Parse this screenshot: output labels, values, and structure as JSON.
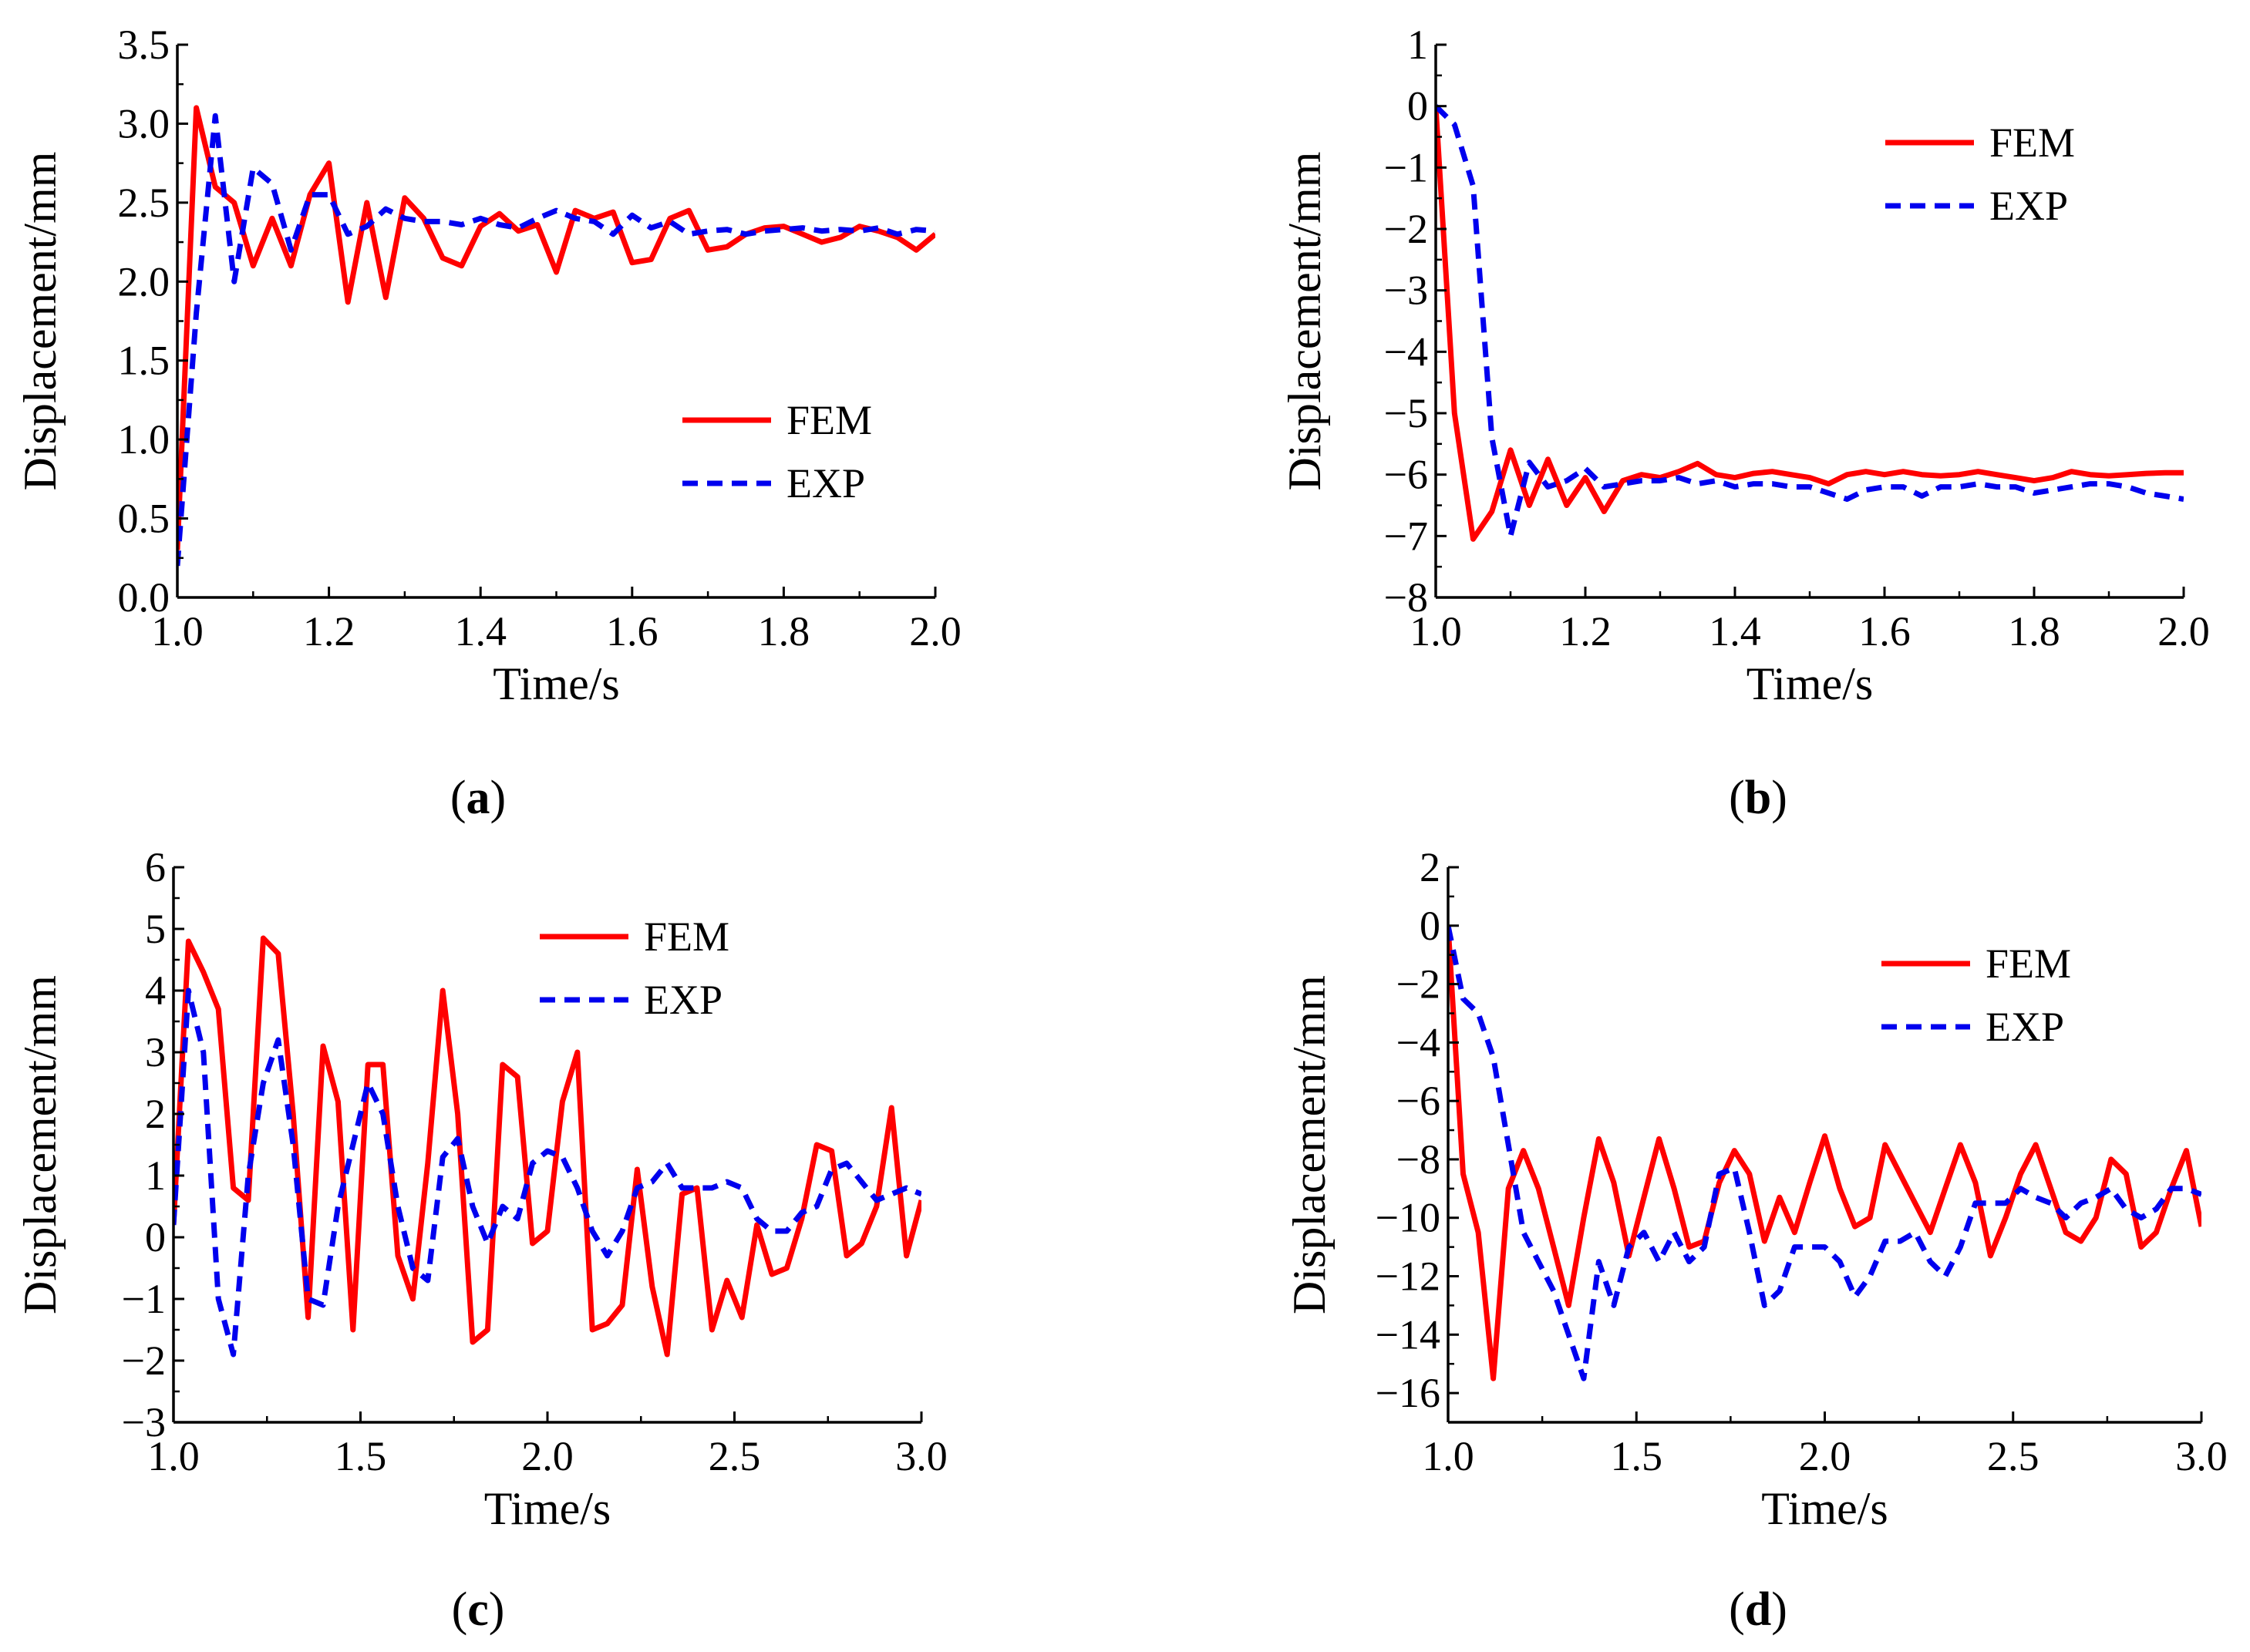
{
  "chart_data": [
    {
      "type": "line",
      "panel": "(a)",
      "panel_letter": "a",
      "xlabel": "Time/s",
      "ylabel": "Displacement/mm",
      "xlim": [
        1.0,
        2.0
      ],
      "ylim": [
        0.0,
        3.5
      ],
      "xticks": [
        "1.0",
        "1.2",
        "1.4",
        "1.6",
        "1.8",
        "2.0"
      ],
      "yticks": [
        "0.0",
        "0.5",
        "1.0",
        "1.5",
        "2.0",
        "2.5",
        "3.0",
        "3.5"
      ],
      "legend_position": "right-middle",
      "series": [
        {
          "name": "FEM",
          "color": "#ff0000",
          "style": "solid",
          "x": [
            1.0,
            1.025,
            1.05,
            1.075,
            1.1,
            1.125,
            1.15,
            1.175,
            1.2,
            1.225,
            1.25,
            1.275,
            1.3,
            1.325,
            1.35,
            1.375,
            1.4,
            1.425,
            1.45,
            1.475,
            1.5,
            1.525,
            1.55,
            1.575,
            1.6,
            1.625,
            1.65,
            1.675,
            1.7,
            1.725,
            1.75,
            1.775,
            1.8,
            1.825,
            1.85,
            1.875,
            1.9,
            1.925,
            1.95,
            1.975,
            2.0
          ],
          "y": [
            0.3,
            3.1,
            2.6,
            2.5,
            2.1,
            2.4,
            2.1,
            2.55,
            2.75,
            1.87,
            2.5,
            1.9,
            2.53,
            2.4,
            2.15,
            2.1,
            2.35,
            2.43,
            2.32,
            2.36,
            2.06,
            2.45,
            2.4,
            2.44,
            2.12,
            2.14,
            2.4,
            2.45,
            2.2,
            2.22,
            2.3,
            2.34,
            2.35,
            2.3,
            2.25,
            2.28,
            2.35,
            2.32,
            2.28,
            2.2,
            2.3
          ]
        },
        {
          "name": "EXP",
          "color": "#0000ee",
          "style": "dashed",
          "x": [
            1.0,
            1.025,
            1.05,
            1.075,
            1.1,
            1.125,
            1.15,
            1.175,
            1.2,
            1.225,
            1.25,
            1.275,
            1.3,
            1.325,
            1.35,
            1.375,
            1.4,
            1.425,
            1.45,
            1.475,
            1.5,
            1.525,
            1.55,
            1.575,
            1.6,
            1.625,
            1.65,
            1.675,
            1.7,
            1.725,
            1.75,
            1.775,
            1.8,
            1.825,
            1.85,
            1.875,
            1.9,
            1.925,
            1.95,
            1.975,
            2.0
          ],
          "y": [
            0.2,
            1.8,
            3.05,
            2.0,
            2.72,
            2.62,
            2.2,
            2.55,
            2.55,
            2.3,
            2.35,
            2.46,
            2.4,
            2.38,
            2.38,
            2.36,
            2.4,
            2.36,
            2.34,
            2.4,
            2.45,
            2.4,
            2.38,
            2.3,
            2.42,
            2.34,
            2.38,
            2.3,
            2.32,
            2.33,
            2.3,
            2.32,
            2.33,
            2.34,
            2.32,
            2.33,
            2.32,
            2.34,
            2.3,
            2.33,
            2.32
          ]
        }
      ]
    },
    {
      "type": "line",
      "panel": "(b)",
      "panel_letter": "b",
      "xlabel": "Time/s",
      "ylabel": "Displacement/mm",
      "xlim": [
        1.0,
        2.0
      ],
      "ylim": [
        -8,
        1
      ],
      "xticks": [
        "1.0",
        "1.2",
        "1.4",
        "1.6",
        "1.8",
        "2.0"
      ],
      "yticks": [
        "−8",
        "−7",
        "−6",
        "−5",
        "−4",
        "−3",
        "−2",
        "−1",
        "0",
        "1"
      ],
      "legend_position": "top-right",
      "series": [
        {
          "name": "FEM",
          "color": "#ff0000",
          "style": "solid",
          "x": [
            1.0,
            1.025,
            1.05,
            1.075,
            1.1,
            1.125,
            1.15,
            1.175,
            1.2,
            1.225,
            1.25,
            1.275,
            1.3,
            1.325,
            1.35,
            1.375,
            1.4,
            1.425,
            1.45,
            1.475,
            1.5,
            1.525,
            1.55,
            1.575,
            1.6,
            1.625,
            1.65,
            1.675,
            1.7,
            1.725,
            1.75,
            1.775,
            1.8,
            1.825,
            1.85,
            1.875,
            1.9,
            1.925,
            1.95,
            1.975,
            2.0
          ],
          "y": [
            0.0,
            -5.0,
            -7.05,
            -6.6,
            -5.6,
            -6.5,
            -5.75,
            -6.5,
            -6.05,
            -6.6,
            -6.1,
            -6.0,
            -6.05,
            -5.95,
            -5.82,
            -6.0,
            -6.05,
            -5.98,
            -5.95,
            -6.0,
            -6.05,
            -6.15,
            -6.0,
            -5.95,
            -6.0,
            -5.95,
            -6.0,
            -6.02,
            -6.0,
            -5.95,
            -6.0,
            -6.05,
            -6.1,
            -6.05,
            -5.95,
            -6.0,
            -6.02,
            -6.0,
            -5.98,
            -5.97,
            -5.97
          ]
        },
        {
          "name": "EXP",
          "color": "#0000ee",
          "style": "dashed",
          "x": [
            1.0,
            1.025,
            1.05,
            1.075,
            1.1,
            1.125,
            1.15,
            1.175,
            1.2,
            1.225,
            1.25,
            1.275,
            1.3,
            1.325,
            1.35,
            1.375,
            1.4,
            1.425,
            1.45,
            1.475,
            1.5,
            1.525,
            1.55,
            1.575,
            1.6,
            1.625,
            1.65,
            1.675,
            1.7,
            1.725,
            1.75,
            1.775,
            1.8,
            1.825,
            1.85,
            1.875,
            1.9,
            1.925,
            1.95,
            1.975,
            2.0
          ],
          "y": [
            0.0,
            -0.3,
            -1.3,
            -5.4,
            -7.0,
            -5.8,
            -6.2,
            -6.1,
            -5.9,
            -6.2,
            -6.15,
            -6.1,
            -6.1,
            -6.05,
            -6.15,
            -6.1,
            -6.2,
            -6.15,
            -6.15,
            -6.2,
            -6.2,
            -6.3,
            -6.4,
            -6.25,
            -6.2,
            -6.2,
            -6.35,
            -6.2,
            -6.2,
            -6.15,
            -6.2,
            -6.2,
            -6.3,
            -6.25,
            -6.2,
            -6.15,
            -6.15,
            -6.2,
            -6.3,
            -6.35,
            -6.4
          ]
        }
      ]
    },
    {
      "type": "line",
      "panel": "(c)",
      "panel_letter": "c",
      "xlabel": "Time/s",
      "ylabel": "Displacement/mm",
      "xlim": [
        1.0,
        3.0
      ],
      "ylim": [
        -3,
        6
      ],
      "xticks": [
        "1.0",
        "1.5",
        "2.0",
        "2.5",
        "3.0"
      ],
      "yticks": [
        "−3",
        "−2",
        "−1",
        "0",
        "1",
        "2",
        "3",
        "4",
        "5",
        "6"
      ],
      "legend_position": "top-middle",
      "series": [
        {
          "name": "FEM",
          "color": "#ff0000",
          "style": "solid",
          "x": [
            1.0,
            1.04,
            1.08,
            1.12,
            1.16,
            1.2,
            1.24,
            1.28,
            1.32,
            1.36,
            1.4,
            1.44,
            1.48,
            1.52,
            1.56,
            1.6,
            1.64,
            1.68,
            1.72,
            1.76,
            1.8,
            1.84,
            1.88,
            1.92,
            1.96,
            2.0,
            2.04,
            2.08,
            2.12,
            2.16,
            2.2,
            2.24,
            2.28,
            2.32,
            2.36,
            2.4,
            2.44,
            2.48,
            2.52,
            2.56,
            2.6,
            2.64,
            2.68,
            2.72,
            2.76,
            2.8,
            2.84,
            2.88,
            2.92,
            2.96,
            3.0
          ],
          "y": [
            0.2,
            4.8,
            4.3,
            3.7,
            0.8,
            0.6,
            4.85,
            4.6,
            2.0,
            -1.3,
            3.1,
            2.2,
            -1.5,
            2.8,
            2.8,
            -0.3,
            -1.0,
            1.2,
            4.0,
            2.0,
            -1.7,
            -1.5,
            2.8,
            2.6,
            -0.1,
            0.1,
            2.2,
            3.0,
            -1.5,
            -1.4,
            -1.1,
            1.1,
            -0.8,
            -1.9,
            0.7,
            0.8,
            -1.5,
            -0.7,
            -1.3,
            0.2,
            -0.6,
            -0.5,
            0.3,
            1.5,
            1.4,
            -0.3,
            -0.1,
            0.5,
            2.1,
            -0.3,
            0.6
          ]
        },
        {
          "name": "EXP",
          "color": "#0000ee",
          "style": "dashed",
          "x": [
            1.0,
            1.04,
            1.08,
            1.12,
            1.16,
            1.2,
            1.24,
            1.28,
            1.32,
            1.36,
            1.4,
            1.44,
            1.48,
            1.52,
            1.56,
            1.6,
            1.64,
            1.68,
            1.72,
            1.76,
            1.8,
            1.84,
            1.88,
            1.92,
            1.96,
            2.0,
            2.04,
            2.08,
            2.12,
            2.16,
            2.2,
            2.24,
            2.28,
            2.32,
            2.36,
            2.4,
            2.44,
            2.48,
            2.52,
            2.56,
            2.6,
            2.64,
            2.68,
            2.72,
            2.76,
            2.8,
            2.84,
            2.88,
            2.92,
            2.96,
            3.0
          ],
          "y": [
            0.2,
            4.0,
            3.0,
            -1.0,
            -1.9,
            1.0,
            2.5,
            3.2,
            1.5,
            -1.0,
            -1.1,
            0.5,
            1.5,
            2.5,
            2.0,
            0.5,
            -0.5,
            -0.7,
            1.3,
            1.6,
            0.5,
            -0.1,
            0.5,
            0.3,
            1.2,
            1.4,
            1.3,
            0.8,
            0.1,
            -0.3,
            0.1,
            0.8,
            0.9,
            1.2,
            0.8,
            0.8,
            0.8,
            0.9,
            0.8,
            0.3,
            0.1,
            0.1,
            0.4,
            0.5,
            1.1,
            1.2,
            0.9,
            0.6,
            0.7,
            0.8,
            0.7
          ]
        }
      ]
    },
    {
      "type": "line",
      "panel": "(d)",
      "panel_letter": "d",
      "xlabel": "Time/s",
      "ylabel": "Displacement/mm",
      "xlim": [
        1.0,
        3.0
      ],
      "ylim": [
        -17,
        2
      ],
      "xticks": [
        "1.0",
        "1.5",
        "2.0",
        "2.5",
        "3.0"
      ],
      "yticks": [
        "−16",
        "−14",
        "−12",
        "−10",
        "−8",
        "−6",
        "−4",
        "−2",
        "0",
        "2"
      ],
      "legend_position": "top-right",
      "series": [
        {
          "name": "FEM",
          "color": "#ff0000",
          "style": "solid",
          "x": [
            1.0,
            1.04,
            1.08,
            1.12,
            1.16,
            1.2,
            1.24,
            1.28,
            1.32,
            1.36,
            1.4,
            1.44,
            1.48,
            1.52,
            1.56,
            1.6,
            1.64,
            1.68,
            1.72,
            1.76,
            1.8,
            1.84,
            1.88,
            1.92,
            1.96,
            2.0,
            2.04,
            2.08,
            2.12,
            2.16,
            2.2,
            2.24,
            2.28,
            2.32,
            2.36,
            2.4,
            2.44,
            2.48,
            2.52,
            2.56,
            2.6,
            2.64,
            2.68,
            2.72,
            2.76,
            2.8,
            2.84,
            2.88,
            2.92,
            2.96,
            3.0
          ],
          "y": [
            0.0,
            -8.5,
            -10.5,
            -15.5,
            -9.0,
            -7.7,
            -9.0,
            -11.0,
            -13.0,
            -10.0,
            -7.3,
            -8.8,
            -11.3,
            -9.3,
            -7.3,
            -9.0,
            -11.0,
            -10.8,
            -8.8,
            -7.7,
            -8.5,
            -10.8,
            -9.3,
            -10.5,
            -8.8,
            -7.2,
            -9.0,
            -10.3,
            -10.0,
            -7.5,
            -8.5,
            -9.5,
            -10.5,
            -9.0,
            -7.5,
            -8.8,
            -11.3,
            -10.0,
            -8.5,
            -7.5,
            -9.0,
            -10.5,
            -10.8,
            -10.0,
            -8.0,
            -8.5,
            -11.0,
            -10.5,
            -9.0,
            -7.7,
            -10.3
          ]
        },
        {
          "name": "EXP",
          "color": "#0000ee",
          "style": "dashed",
          "x": [
            1.0,
            1.04,
            1.08,
            1.12,
            1.16,
            1.2,
            1.24,
            1.28,
            1.32,
            1.36,
            1.4,
            1.44,
            1.48,
            1.52,
            1.56,
            1.6,
            1.64,
            1.68,
            1.72,
            1.76,
            1.8,
            1.84,
            1.88,
            1.92,
            1.96,
            2.0,
            2.04,
            2.08,
            2.12,
            2.16,
            2.2,
            2.24,
            2.28,
            2.32,
            2.36,
            2.4,
            2.44,
            2.48,
            2.52,
            2.56,
            2.6,
            2.64,
            2.68,
            2.72,
            2.76,
            2.8,
            2.84,
            2.88,
            2.92,
            2.96,
            3.0
          ],
          "y": [
            0.0,
            -2.5,
            -3.0,
            -4.5,
            -7.5,
            -10.5,
            -11.5,
            -12.5,
            -14.0,
            -15.5,
            -11.5,
            -13.0,
            -11.0,
            -10.5,
            -11.5,
            -10.5,
            -11.5,
            -11.0,
            -8.5,
            -8.3,
            -10.5,
            -13.0,
            -12.5,
            -11.0,
            -11.0,
            -11.0,
            -11.5,
            -12.7,
            -12.0,
            -10.8,
            -10.8,
            -10.5,
            -11.5,
            -12.0,
            -11.0,
            -9.5,
            -9.5,
            -9.5,
            -9.0,
            -9.3,
            -9.5,
            -10.0,
            -9.5,
            -9.3,
            -9.0,
            -9.7,
            -10.0,
            -9.7,
            -9.0,
            -9.0,
            -9.2
          ]
        }
      ]
    }
  ]
}
